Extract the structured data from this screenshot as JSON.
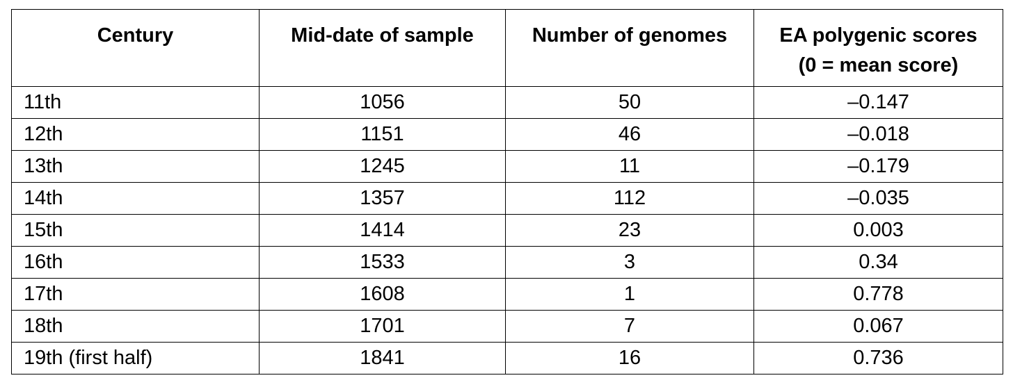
{
  "table": {
    "columns": [
      {
        "lines": [
          "Century"
        ]
      },
      {
        "lines": [
          "Mid-date of sample"
        ]
      },
      {
        "lines": [
          "Number of genomes"
        ]
      },
      {
        "lines": [
          "EA polygenic scores",
          "(0 = mean score)"
        ]
      }
    ],
    "rows": [
      [
        "11th",
        "1056",
        "50",
        "–0.147"
      ],
      [
        "12th",
        "1151",
        "46",
        "–0.018"
      ],
      [
        "13th",
        "1245",
        "11",
        "–0.179"
      ],
      [
        "14th",
        "1357",
        "112",
        "–0.035"
      ],
      [
        "15th",
        "1414",
        "23",
        "0.003"
      ],
      [
        "16th",
        "1533",
        "3",
        "0.34"
      ],
      [
        "17th",
        "1608",
        "1",
        "0.778"
      ],
      [
        "18th",
        "1701",
        "7",
        "0.067"
      ],
      [
        "19th (first half)",
        "1841",
        "16",
        "0.736"
      ]
    ]
  }
}
